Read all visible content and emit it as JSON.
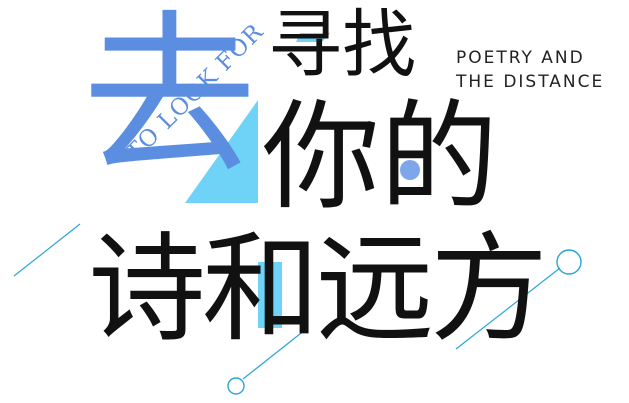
{
  "title": {
    "qu": "去",
    "xunzhao": "寻找",
    "nide": "你的",
    "shihe_yuanfang": "诗和远方"
  },
  "english": {
    "line1": "POETRY AND",
    "line2": "THE DISTANCE"
  },
  "rotated_text": "TO LOOK FOR",
  "colors": {
    "accent_blue": "#5b8ee0",
    "light_cyan": "#6fd3f7",
    "line_cyan": "#2aa6d6",
    "text_black": "#111111"
  }
}
